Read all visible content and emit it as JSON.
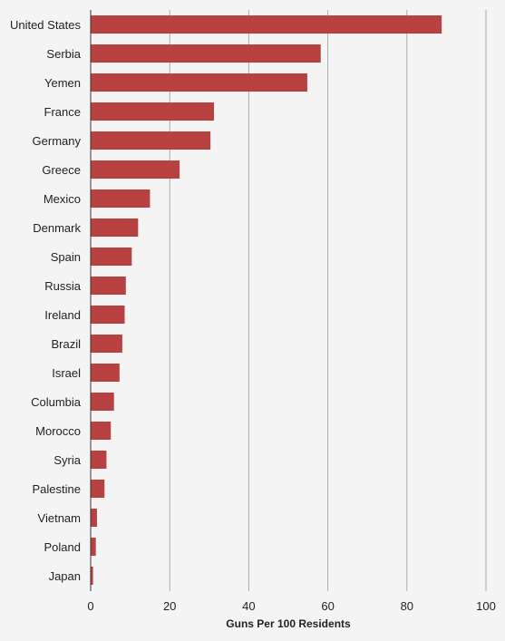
{
  "chart_data": {
    "type": "bar",
    "orientation": "horizontal",
    "categories": [
      "United States",
      "Serbia",
      "Yemen",
      "France",
      "Germany",
      "Greece",
      "Mexico",
      "Denmark",
      "Spain",
      "Russia",
      "Ireland",
      "Brazil",
      "Israel",
      "Columbia",
      "Morocco",
      "Syria",
      "Palestine",
      "Vietnam",
      "Poland",
      "Japan"
    ],
    "values": [
      88.8,
      58.2,
      54.8,
      31.2,
      30.3,
      22.5,
      15.0,
      12.0,
      10.4,
      8.9,
      8.6,
      8.0,
      7.3,
      5.9,
      5.1,
      4.0,
      3.5,
      1.6,
      1.3,
      0.6
    ],
    "xlabel": "Guns Per 100 Residents",
    "ylabel": "",
    "xlim": [
      0,
      100
    ],
    "xticks": [
      "0",
      "20",
      "40",
      "60",
      "80",
      "100"
    ],
    "grid": true,
    "colors": {
      "bar": "#b84141",
      "grid": "#aaaaaa",
      "background": "#f4f4f4",
      "axis": "#333333"
    }
  }
}
